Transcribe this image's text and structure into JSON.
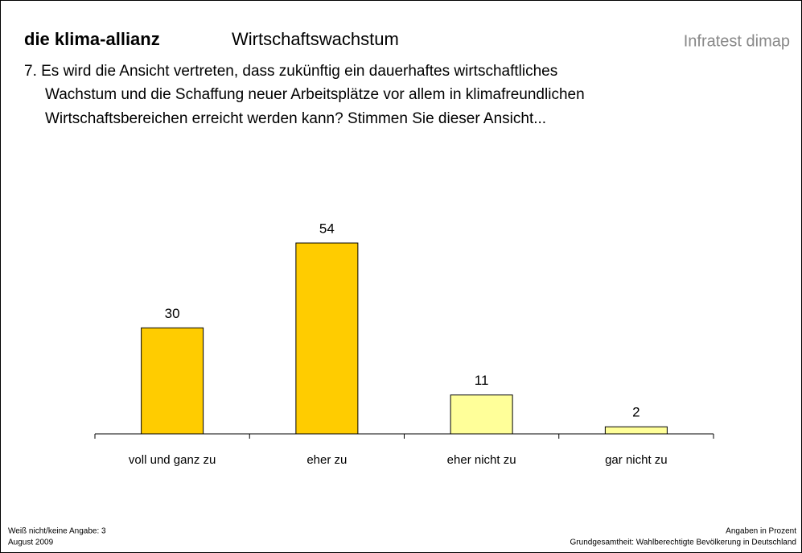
{
  "chart_data": {
    "type": "bar",
    "brand": "die klima-allianz",
    "title": "Wirtschaftswachstum",
    "source": "Infratest dimap",
    "question": [
      "7. Es wird die Ansicht vertreten, dass zukünftig ein dauerhaftes wirtschaftliches",
      "Wachstum und die Schaffung neuer Arbeitsplätze vor allem in klimafreundlichen",
      "Wirtschaftsbereichen erreicht werden kann? Stimmen Sie dieser Ansicht..."
    ],
    "categories": [
      "voll und ganz zu",
      "eher zu",
      "eher nicht zu",
      "gar nicht zu"
    ],
    "values": [
      30,
      54,
      11,
      2
    ],
    "colors": [
      "#ffcc00",
      "#ffcc00",
      "#ffff99",
      "#ffff99"
    ],
    "footnote_left": [
      "Weiß nicht/keine Angabe: 3",
      "August 2009"
    ],
    "footnote_right": [
      "Angaben in Prozent",
      "Grundgesamtheit: Wahlberechtigte Bevölkerung in Deutschland"
    ]
  }
}
